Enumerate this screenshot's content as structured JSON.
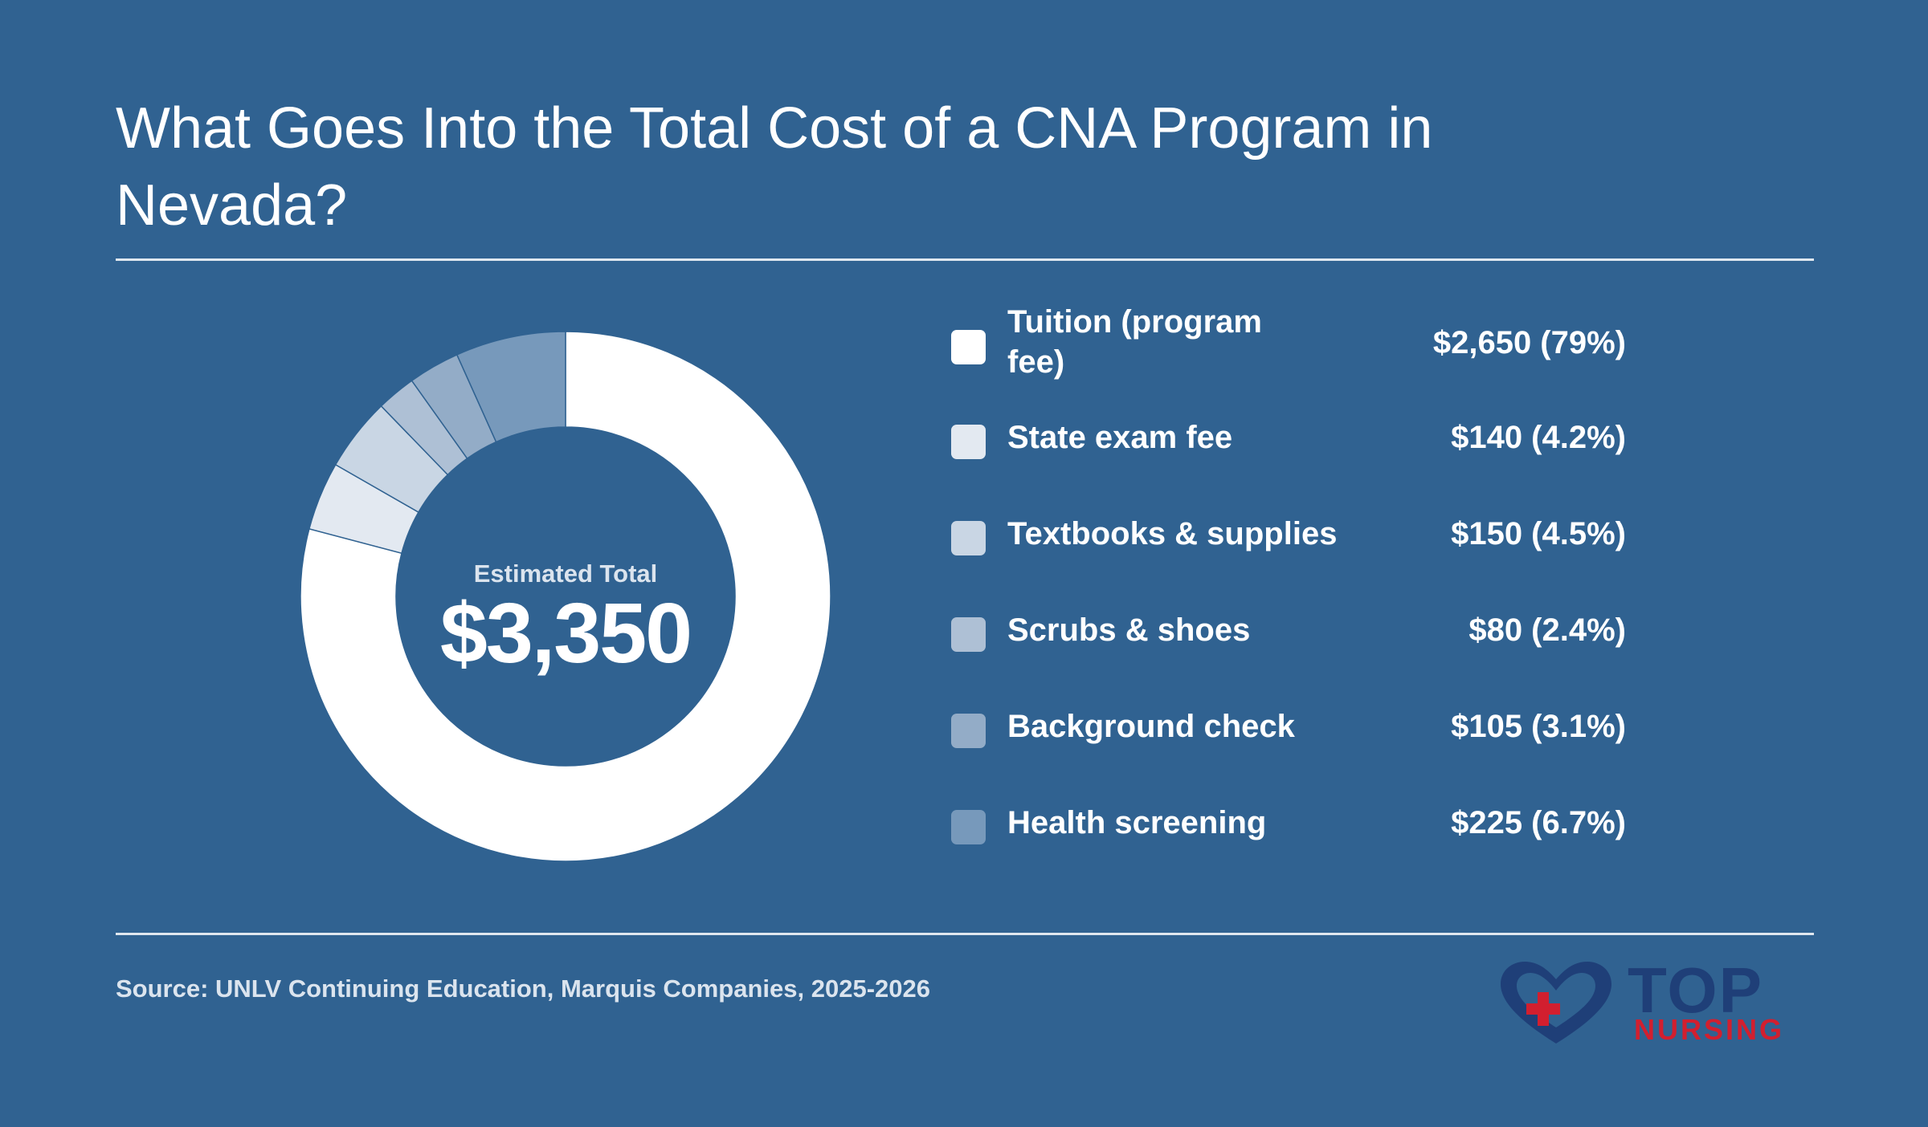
{
  "title": "What Goes Into the Total Cost of a CNA Program in Nevada?",
  "center": {
    "label": "Estimated Total",
    "value": "$3,350"
  },
  "source": "Source: UNLV Continuing Education, Marquis Companies, 2025-2026",
  "logo": {
    "top": "TOP",
    "nursing": "NURSING",
    "heart_color": "#1f3f78",
    "cross_color": "#d21f2f"
  },
  "colors": {
    "background": "#306291",
    "rule": "#dfe7ef",
    "segment_divider": "#306291"
  },
  "chart_data": {
    "type": "pie",
    "donut": true,
    "total": 3350,
    "categories": [
      "Tuition (program fee)",
      "State exam fee",
      "Textbooks & supplies",
      "Scrubs & shoes",
      "Background check",
      "Health screening"
    ],
    "values": [
      2650,
      140,
      150,
      80,
      105,
      225
    ],
    "value_labels": [
      "$2,650 (79%)",
      "$140 (4.2%)",
      "$150 (4.5%)",
      "$80 (2.4%)",
      "$105 (3.1%)",
      "$225 (6.7%)"
    ],
    "colors": [
      "#ffffff",
      "#e3e9f1",
      "#c9d6e4",
      "#aec0d5",
      "#93acc7",
      "#7799bb"
    ],
    "legend_position": "right"
  }
}
